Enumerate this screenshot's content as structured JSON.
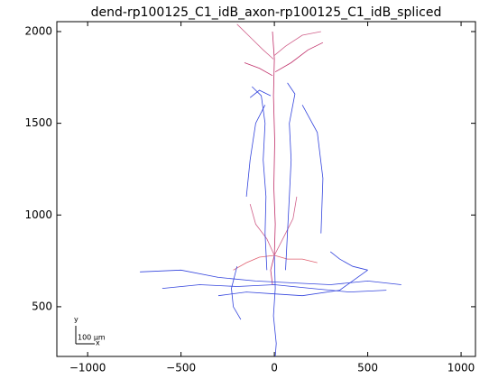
{
  "chart_data": {
    "type": "trace",
    "title": "dend-rp100125_C1_idB_axon-rp100125_C1_idB_spliced",
    "xlim": [
      -1165,
      1077
    ],
    "ylim": [
      229,
      2054
    ],
    "xticks": [
      {
        "value": -1000,
        "label": "−1000"
      },
      {
        "value": -500,
        "label": "−500"
      },
      0,
      500,
      1000
    ],
    "yticks": [
      500,
      1000,
      1500,
      2000
    ],
    "scale_bar": {
      "y_label": "y",
      "x_label": "x",
      "length_label": "100 μm"
    },
    "series": [
      {
        "color": "#c0306a",
        "x": [
          0,
          5,
          -3,
          2,
          -5,
          0,
          -10
        ],
        "values": [
          780,
          950,
          1150,
          1400,
          1650,
          1850,
          2000
        ]
      },
      {
        "color": "#d0608a",
        "x": [
          -5,
          -60,
          -120,
          -200
        ],
        "values": [
          1850,
          1900,
          1960,
          2040
        ]
      },
      {
        "color": "#d0608a",
        "x": [
          0,
          60,
          150,
          250
        ],
        "values": [
          1870,
          1920,
          1980,
          2000
        ]
      },
      {
        "color": "#c0306a",
        "x": [
          -10,
          -80,
          -160
        ],
        "values": [
          1760,
          1800,
          1830
        ]
      },
      {
        "color": "#c0306a",
        "x": [
          5,
          90,
          180,
          260
        ],
        "values": [
          1780,
          1830,
          1900,
          1940
        ]
      },
      {
        "color": "#e06070",
        "x": [
          0,
          -80,
          -150,
          -220
        ],
        "values": [
          780,
          770,
          740,
          700
        ]
      },
      {
        "color": "#e06070",
        "x": [
          0,
          70,
          150,
          230
        ],
        "values": [
          780,
          760,
          760,
          740
        ]
      },
      {
        "color": "#d0608a",
        "x": [
          0,
          -40,
          -100,
          -130
        ],
        "values": [
          780,
          870,
          950,
          1060
        ]
      },
      {
        "color": "#d0608a",
        "x": [
          0,
          50,
          100,
          120
        ],
        "values": [
          780,
          880,
          980,
          1100
        ]
      },
      {
        "color": "#c0306a",
        "x": [
          0,
          -20,
          -10
        ],
        "values": [
          780,
          700,
          620
        ]
      },
      {
        "color": "#3344dd",
        "x": [
          0,
          5,
          -5,
          10,
          5
        ],
        "values": [
          780,
          600,
          450,
          300,
          229
        ]
      },
      {
        "color": "#3344dd",
        "x": [
          -720,
          -500,
          -300,
          -100,
          100,
          300,
          500,
          680
        ],
        "values": [
          690,
          700,
          660,
          640,
          630,
          620,
          640,
          620
        ]
      },
      {
        "color": "#3344dd",
        "x": [
          -600,
          -400,
          -200,
          0,
          200,
          400,
          600
        ],
        "values": [
          600,
          620,
          610,
          620,
          600,
          580,
          590
        ]
      },
      {
        "color": "#3344dd",
        "x": [
          -300,
          -150,
          0,
          150,
          350,
          500
        ],
        "values": [
          560,
          580,
          570,
          560,
          590,
          700
        ]
      },
      {
        "color": "#3344dd",
        "x": [
          -40,
          -50,
          -45,
          -60,
          -50,
          -70,
          -120
        ],
        "values": [
          700,
          900,
          1100,
          1300,
          1500,
          1650,
          1700
        ]
      },
      {
        "color": "#3344dd",
        "x": [
          60,
          70,
          80,
          90,
          80,
          110,
          70
        ],
        "values": [
          700,
          900,
          1100,
          1300,
          1500,
          1660,
          1720
        ]
      },
      {
        "color": "#3344dd",
        "x": [
          -50,
          -100,
          -130,
          -150
        ],
        "values": [
          1600,
          1500,
          1300,
          1100
        ]
      },
      {
        "color": "#3344dd",
        "x": [
          150,
          230,
          260,
          250
        ],
        "values": [
          1600,
          1450,
          1200,
          900
        ]
      },
      {
        "color": "#3344dd",
        "x": [
          -200,
          -230,
          -220,
          -180
        ],
        "values": [
          720,
          600,
          500,
          430
        ]
      },
      {
        "color": "#3344dd",
        "x": [
          300,
          350,
          420,
          500
        ],
        "values": [
          800,
          760,
          720,
          700
        ]
      },
      {
        "color": "#3344dd",
        "x": [
          -20,
          -80,
          -130
        ],
        "values": [
          1650,
          1680,
          1640
        ]
      }
    ]
  }
}
